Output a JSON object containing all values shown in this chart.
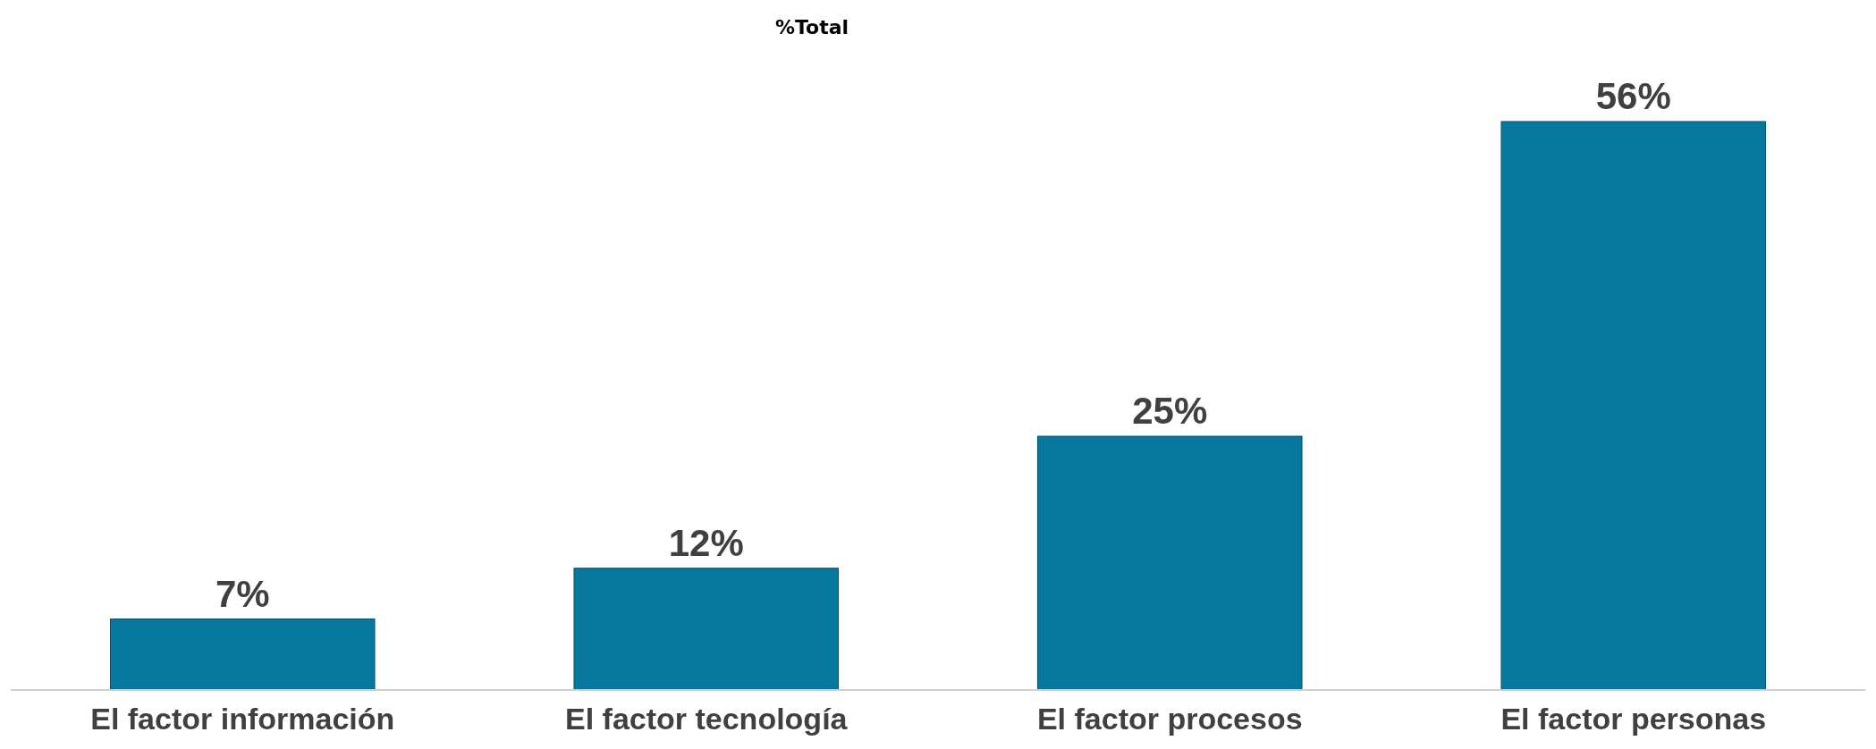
{
  "chart_data": {
    "type": "bar",
    "title": "%Total",
    "categories": [
      "El factor información",
      "El factor tecnología",
      "El factor procesos",
      "El factor personas"
    ],
    "values": [
      7,
      12,
      25,
      56
    ],
    "value_labels": [
      "7%",
      "12%",
      "25%",
      "56%"
    ],
    "color": "#07779c"
  }
}
